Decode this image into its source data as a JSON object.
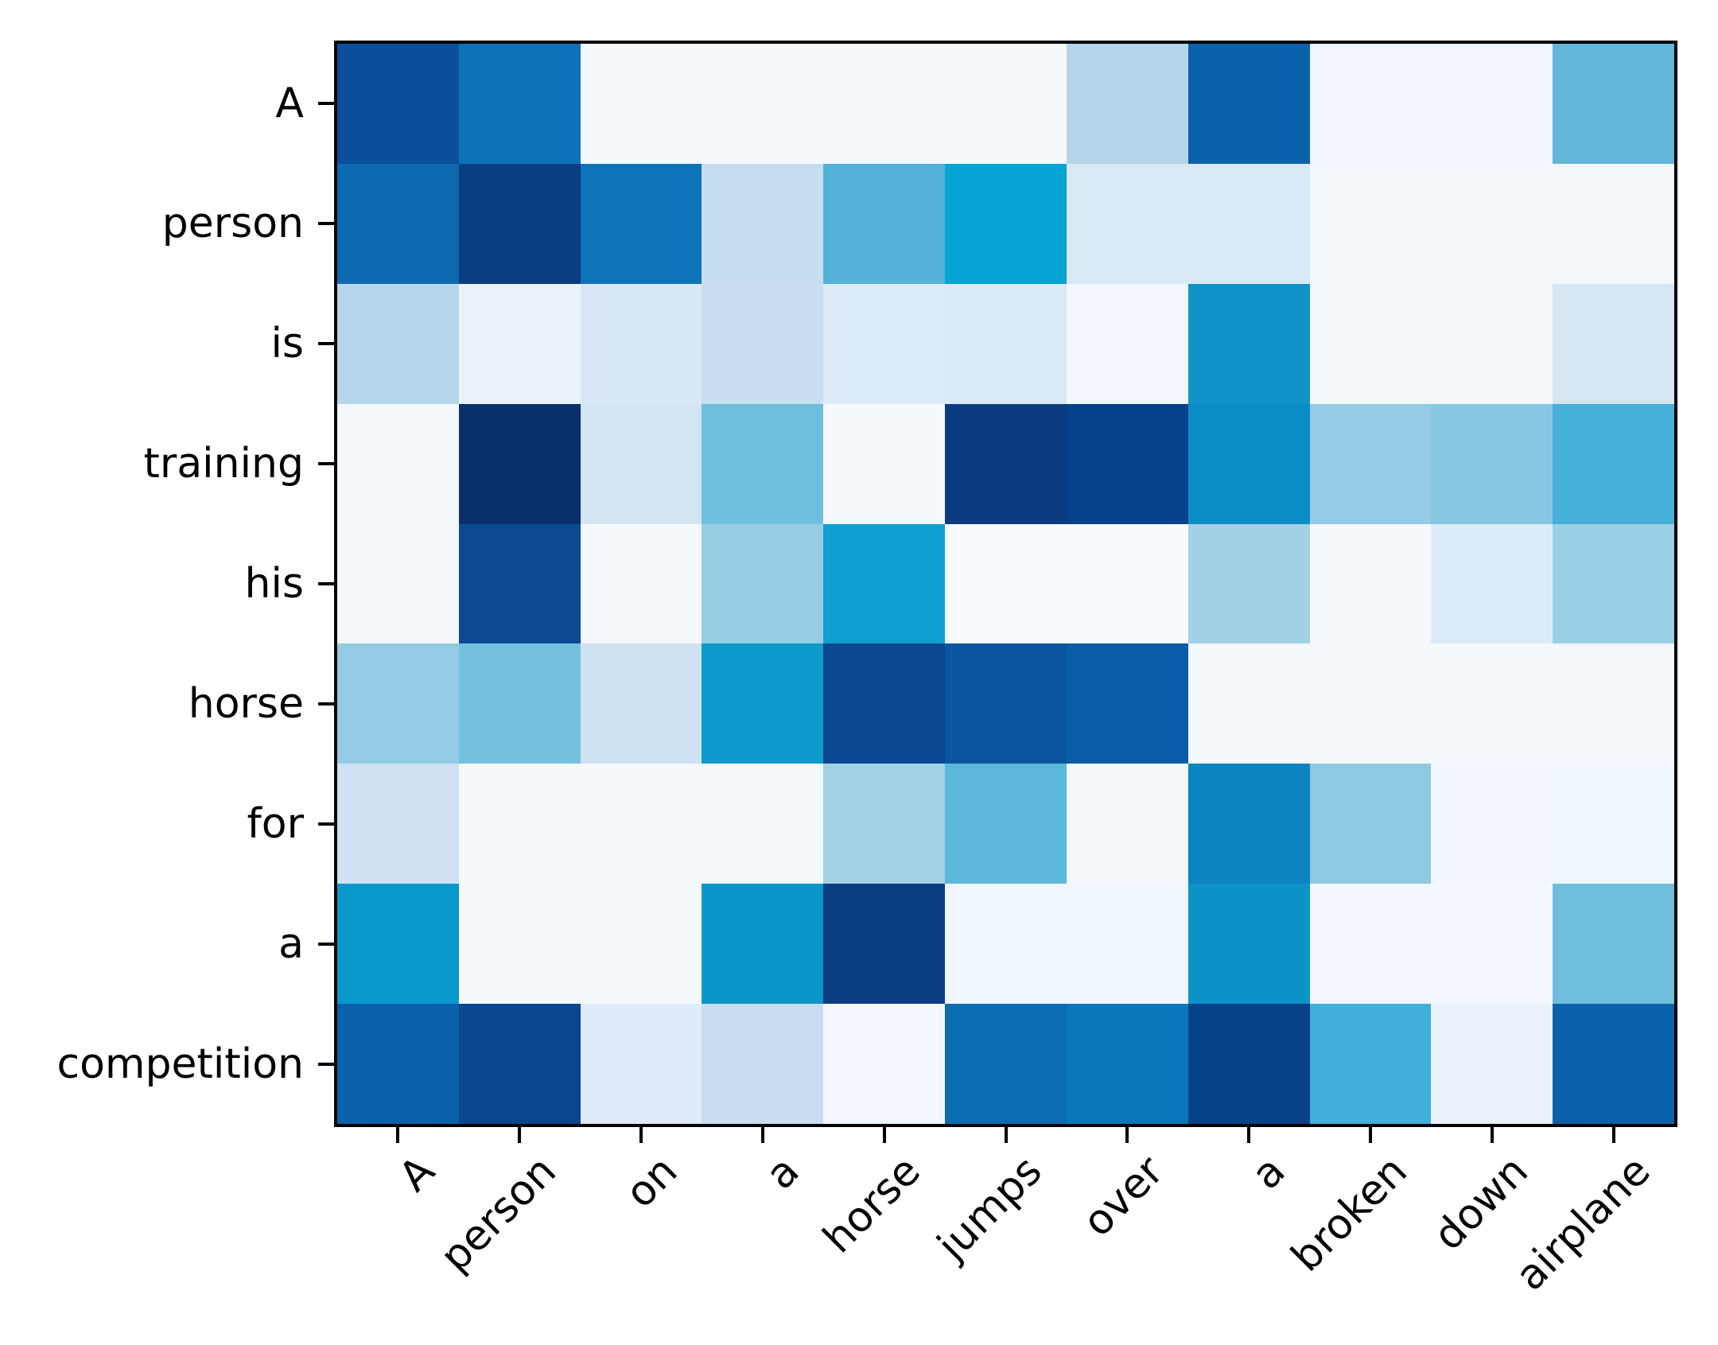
{
  "figure": {
    "background_color": "#ffffff",
    "spine_color": "#000000",
    "tick_color": "#000000",
    "label_color": "#000000"
  },
  "chart_data": {
    "type": "heatmap",
    "title": "",
    "xlabel": "",
    "ylabel": "",
    "grid": false,
    "legend": false,
    "colorbar": false,
    "colormap": "Blues",
    "colormap_range_note": "light #f7fbff = low, dark #08306b = high",
    "x_tick_rotation_deg": 45,
    "rows": [
      "A",
      "person",
      "is",
      "training",
      "his",
      "horse",
      "for",
      "a",
      "competition"
    ],
    "columns": [
      "A",
      "person",
      "on",
      "a",
      "horse",
      "jumps",
      "over",
      "a",
      "broken",
      "down",
      "airplane"
    ],
    "values": [
      [
        0.85,
        0.66,
        0.02,
        0.02,
        0.02,
        0.02,
        0.27,
        0.76,
        0.04,
        0.04,
        0.46
      ],
      [
        0.7,
        0.92,
        0.65,
        0.21,
        0.47,
        0.55,
        0.13,
        0.13,
        0.03,
        0.03,
        0.03
      ],
      [
        0.26,
        0.06,
        0.12,
        0.18,
        0.11,
        0.12,
        0.04,
        0.56,
        0.03,
        0.03,
        0.12
      ],
      [
        0.03,
        1.0,
        0.14,
        0.42,
        0.02,
        0.93,
        0.9,
        0.57,
        0.33,
        0.36,
        0.49
      ],
      [
        0.03,
        0.86,
        0.03,
        0.32,
        0.53,
        0.02,
        0.02,
        0.3,
        0.02,
        0.11,
        0.31
      ],
      [
        0.33,
        0.41,
        0.16,
        0.54,
        0.88,
        0.82,
        0.79,
        0.03,
        0.03,
        0.03,
        0.03
      ],
      [
        0.17,
        0.03,
        0.03,
        0.03,
        0.31,
        0.46,
        0.03,
        0.62,
        0.33,
        0.04,
        0.05
      ],
      [
        0.56,
        0.02,
        0.02,
        0.56,
        0.92,
        0.04,
        0.04,
        0.57,
        0.03,
        0.03,
        0.43
      ],
      [
        0.76,
        0.88,
        0.1,
        0.18,
        0.04,
        0.7,
        0.66,
        0.9,
        0.48,
        0.07,
        0.76
      ]
    ],
    "cell_colors": [
      [
        "#0b4f9b",
        "#0d72b8",
        "#f5f9fe",
        "#f5f9fe",
        "#f5f9fe",
        "#f4f9fe",
        "#b5d4e9",
        "#0a62ab",
        "#f0f6fc",
        "#f0f6fc",
        "#62b6da"
      ],
      [
        "#0c69af",
        "#0a3d82",
        "#0e74b9",
        "#c6dcef",
        "#55b1d8",
        "#06a3d5",
        "#d8e8f5",
        "#d8e8f5",
        "#f2f7fc",
        "#f2f7fc",
        "#f2f7fc"
      ],
      [
        "#b5d6ea",
        "#eaf2fa",
        "#d9e7f5",
        "#c9def1",
        "#dcebf7",
        "#d9e9f6",
        "#f1f7fd",
        "#0f93c8",
        "#f3f8fd",
        "#f3f8fd",
        "#d7e6f3"
      ],
      [
        "#f3f8fd",
        "#08306b",
        "#d3e4f3",
        "#70bedd",
        "#f5f9fe",
        "#0a3b80",
        "#05418a",
        "#0a8dc5",
        "#93cce4",
        "#87c7e1",
        "#45b0d9"
      ],
      [
        "#f3f8fd",
        "#0c4a94",
        "#f4f9fd",
        "#97cde4",
        "#0e9fd0",
        "#f7fafe",
        "#f6fafe",
        "#a2d1e7",
        "#f5f9fe",
        "#dcebf7",
        "#9ad0e6"
      ],
      [
        "#92cbe3",
        "#74c1de",
        "#cfe2f2",
        "#0d9bcd",
        "#0a4891",
        "#0b55a0",
        "#0a5ca6",
        "#f4f9fd",
        "#f4f9fd",
        "#f3f8fd",
        "#f3f8fd"
      ],
      [
        "#cfe1f2",
        "#f4f9fd",
        "#f4f9fd",
        "#f4f9fd",
        "#a3d2e7",
        "#5cb7db",
        "#f3f8fd",
        "#0b84c0",
        "#8fc9e2",
        "#f0f6fc",
        "#eff6fc"
      ],
      [
        "#0998cb",
        "#f4f9fe",
        "#f4f9fe",
        "#0c95c9",
        "#0a3d82",
        "#f0f6fd",
        "#f0f6fd",
        "#0c92c7",
        "#f2f8fd",
        "#f2f8fd",
        "#6fbedd"
      ],
      [
        "#0961aa",
        "#0b4791",
        "#dfebf7",
        "#c8ddf0",
        "#f1f7fd",
        "#0b6cb1",
        "#0878ba",
        "#064288",
        "#41b0dc",
        "#e9f1fb",
        "#0b62ab"
      ]
    ]
  }
}
